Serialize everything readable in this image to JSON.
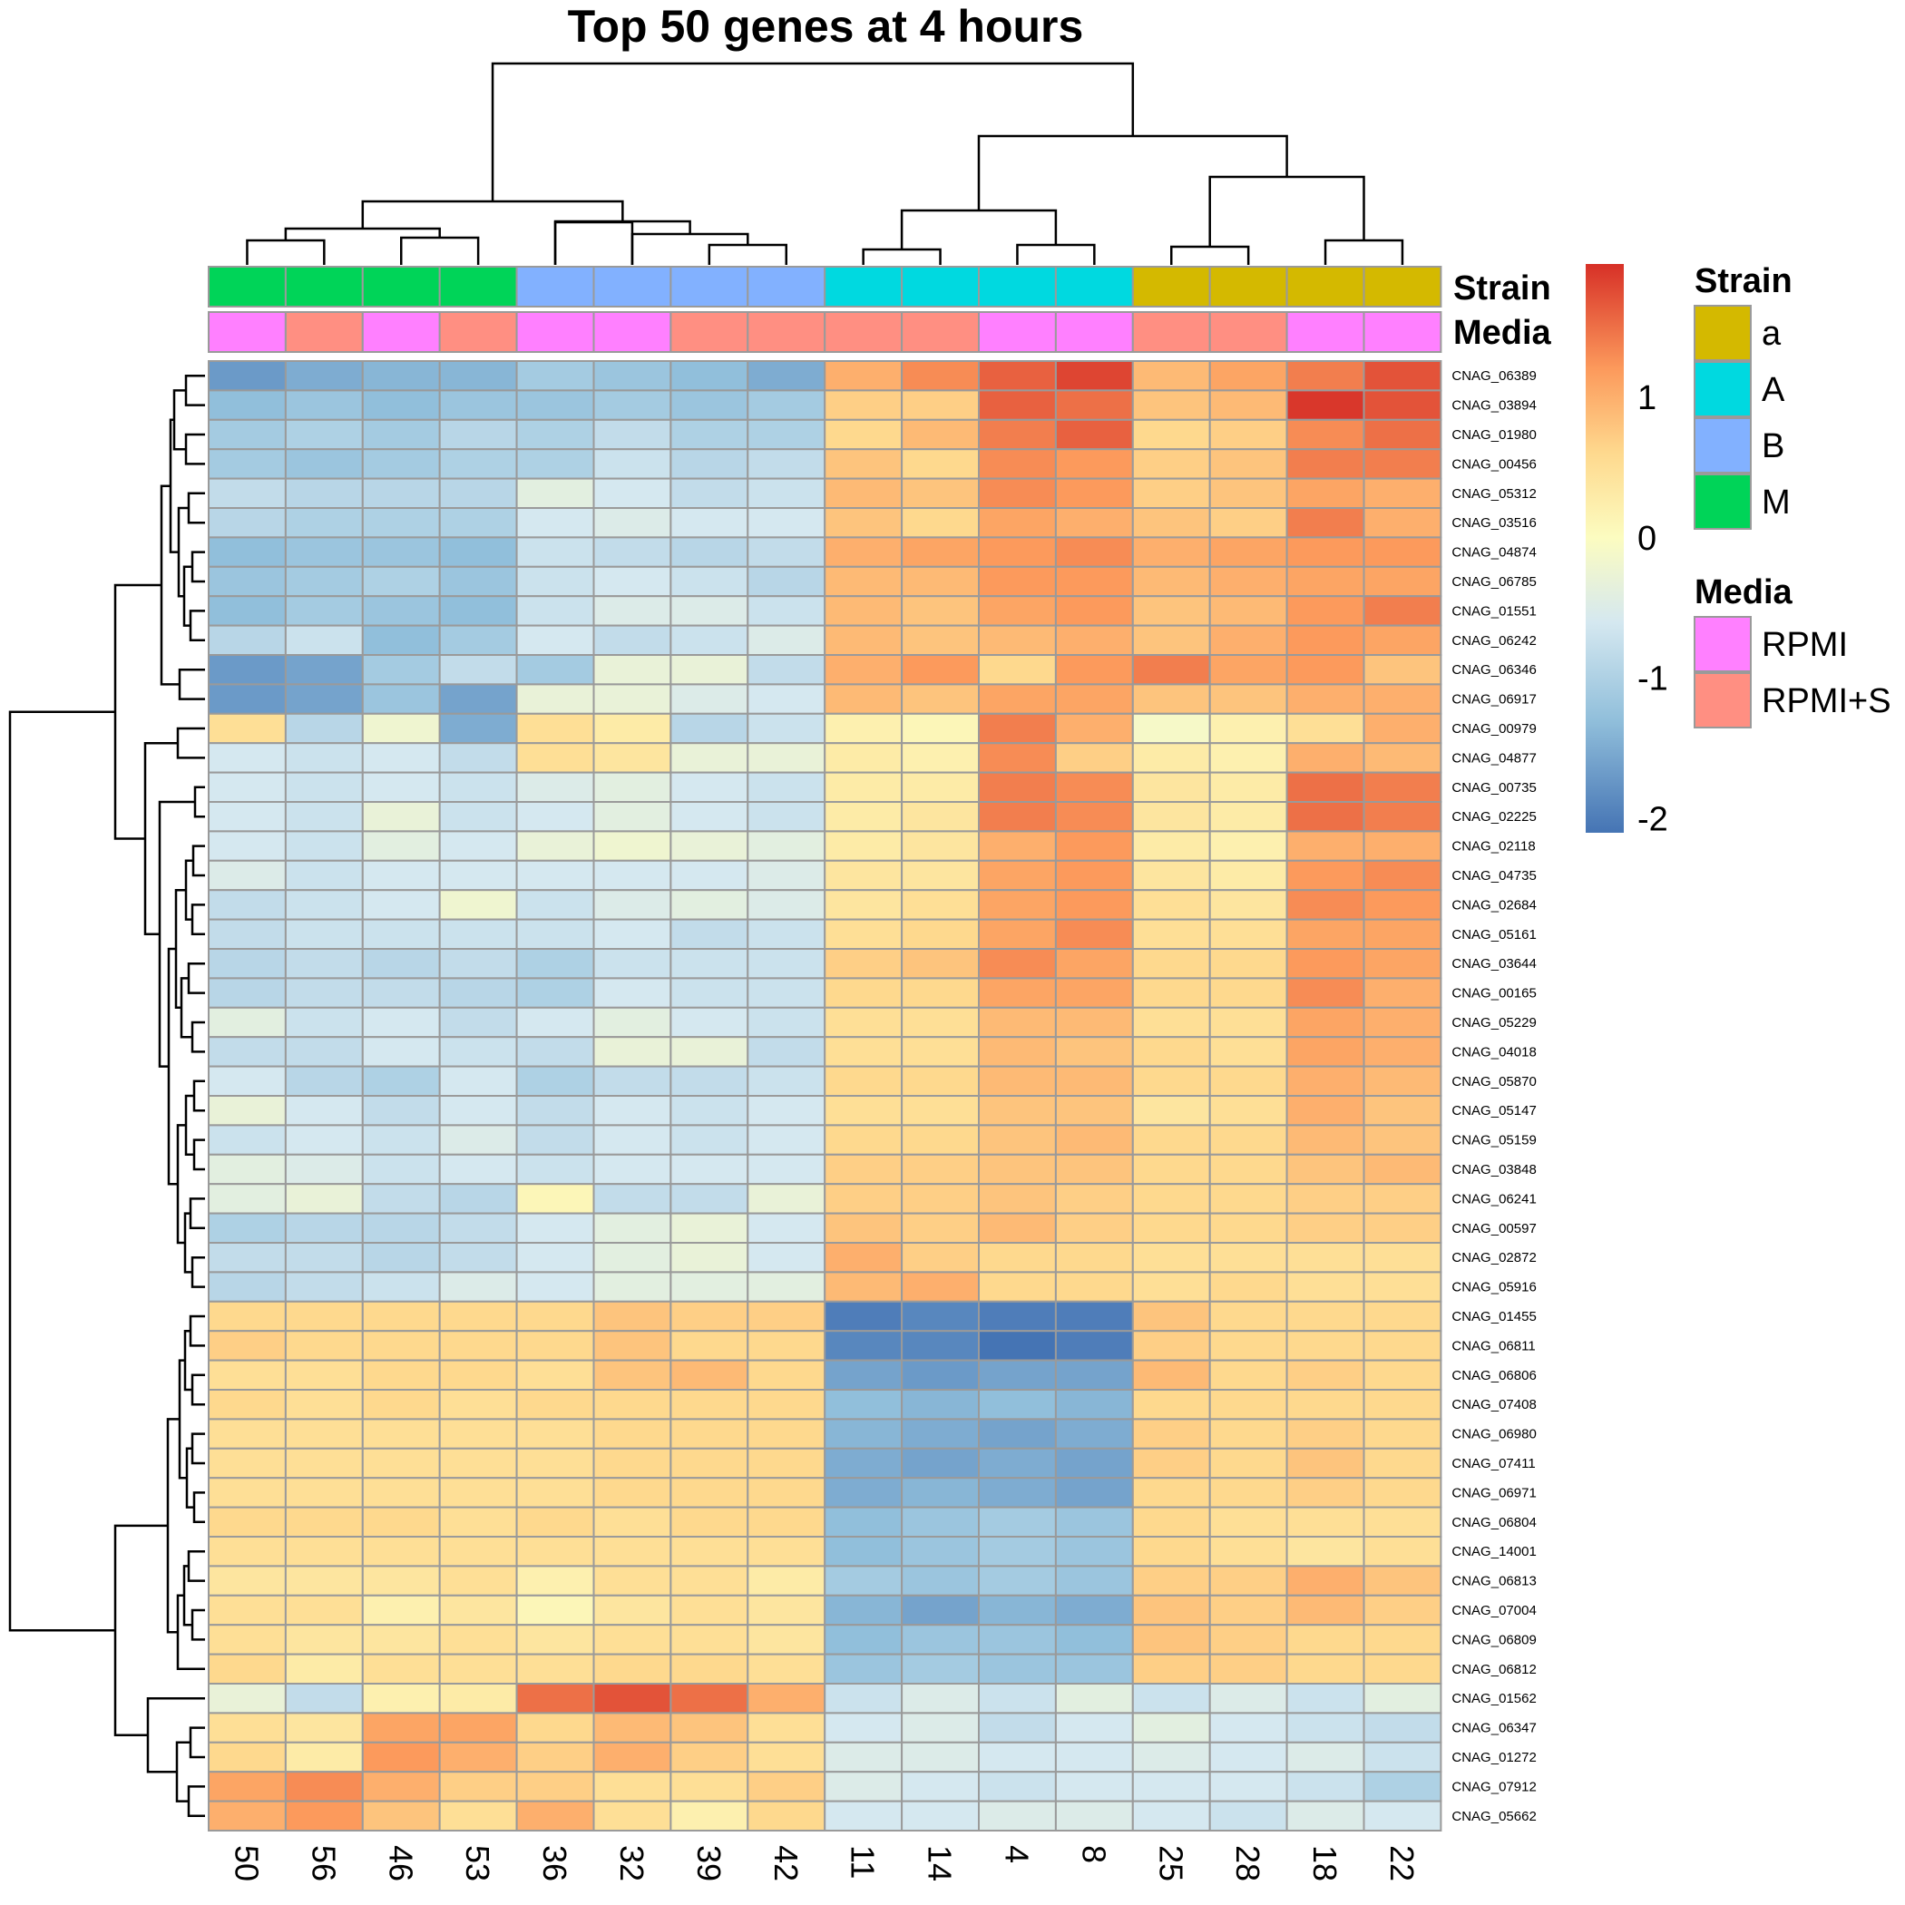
{
  "chart_data": {
    "type": "heatmap",
    "title": "Top 50 genes at 4 hours",
    "columns": [
      "50",
      "56",
      "46",
      "53",
      "36",
      "32",
      "39",
      "42",
      "11",
      "14",
      "4",
      "8",
      "25",
      "28",
      "18",
      "22"
    ],
    "rows": [
      "CNAG_06389",
      "CNAG_03894",
      "CNAG_01980",
      "CNAG_00456",
      "CNAG_05312",
      "CNAG_03516",
      "CNAG_04874",
      "CNAG_06785",
      "CNAG_01551",
      "CNAG_06242",
      "CNAG_06346",
      "CNAG_06917",
      "CNAG_00979",
      "CNAG_04877",
      "CNAG_00735",
      "CNAG_02225",
      "CNAG_02118",
      "CNAG_04735",
      "CNAG_02684",
      "CNAG_05161",
      "CNAG_03644",
      "CNAG_00165",
      "CNAG_05229",
      "CNAG_04018",
      "CNAG_05870",
      "CNAG_05147",
      "CNAG_05159",
      "CNAG_03848",
      "CNAG_06241",
      "CNAG_00597",
      "CNAG_02872",
      "CNAG_05916",
      "CNAG_01455",
      "CNAG_06811",
      "CNAG_06806",
      "CNAG_07408",
      "CNAG_06980",
      "CNAG_07411",
      "CNAG_06971",
      "CNAG_06804",
      "CNAG_14001",
      "CNAG_06813",
      "CNAG_07004",
      "CNAG_06809",
      "CNAG_06812",
      "CNAG_01562",
      "CNAG_06347",
      "CNAG_01272",
      "CNAG_07912",
      "CNAG_05662"
    ],
    "values": [
      [
        -1.7,
        -1.5,
        -1.4,
        -1.4,
        -1.1,
        -1.2,
        -1.3,
        -1.5,
        1.0,
        1.3,
        1.6,
        1.8,
        0.9,
        1.1,
        1.4,
        1.7
      ],
      [
        -1.3,
        -1.2,
        -1.3,
        -1.2,
        -1.2,
        -1.1,
        -1.2,
        -1.1,
        0.7,
        0.7,
        1.6,
        1.5,
        0.8,
        0.9,
        1.9,
        1.7
      ],
      [
        -1.1,
        -1.0,
        -1.1,
        -0.9,
        -1.0,
        -0.8,
        -1.0,
        -1.0,
        0.6,
        0.9,
        1.4,
        1.6,
        0.6,
        0.7,
        1.3,
        1.5
      ],
      [
        -1.1,
        -1.2,
        -1.1,
        -1.0,
        -1.0,
        -0.7,
        -0.9,
        -0.8,
        0.8,
        0.6,
        1.3,
        1.2,
        0.7,
        0.8,
        1.4,
        1.4
      ],
      [
        -0.8,
        -0.9,
        -0.9,
        -0.9,
        -0.4,
        -0.6,
        -0.8,
        -0.7,
        0.9,
        0.8,
        1.3,
        1.2,
        0.7,
        0.8,
        1.1,
        1.0
      ],
      [
        -0.9,
        -1.0,
        -1.0,
        -1.0,
        -0.6,
        -0.5,
        -0.6,
        -0.6,
        0.8,
        0.6,
        1.1,
        1.0,
        0.8,
        0.7,
        1.4,
        1.0
      ],
      [
        -1.3,
        -1.2,
        -1.2,
        -1.3,
        -0.7,
        -0.8,
        -0.9,
        -0.8,
        1.0,
        1.1,
        1.2,
        1.3,
        1.0,
        1.1,
        1.2,
        1.2
      ],
      [
        -1.2,
        -1.1,
        -1.0,
        -1.2,
        -0.7,
        -0.6,
        -0.7,
        -0.9,
        0.9,
        0.9,
        1.2,
        1.2,
        0.9,
        1.0,
        1.1,
        1.1
      ],
      [
        -1.3,
        -1.1,
        -1.2,
        -1.3,
        -0.7,
        -0.5,
        -0.5,
        -0.7,
        0.9,
        0.8,
        1.1,
        1.2,
        0.8,
        0.9,
        1.2,
        1.4
      ],
      [
        -0.9,
        -0.7,
        -1.3,
        -1.1,
        -0.6,
        -0.8,
        -0.7,
        -0.5,
        0.9,
        0.8,
        0.9,
        1.0,
        0.8,
        1.0,
        1.2,
        1.1
      ],
      [
        -1.7,
        -1.6,
        -1.1,
        -0.8,
        -1.1,
        -0.3,
        -0.3,
        -0.8,
        1.0,
        1.2,
        0.6,
        1.2,
        1.4,
        1.1,
        1.2,
        0.8
      ],
      [
        -1.7,
        -1.6,
        -1.2,
        -1.6,
        -0.3,
        -0.3,
        -0.5,
        -0.6,
        0.9,
        0.8,
        1.1,
        1.1,
        0.8,
        0.8,
        1.0,
        1.0
      ],
      [
        0.5,
        -0.9,
        -0.2,
        -1.5,
        0.5,
        0.3,
        -0.9,
        -0.7,
        0.2,
        0.1,
        1.4,
        1.0,
        -0.1,
        0.2,
        0.5,
        1.0
      ],
      [
        -0.6,
        -0.7,
        -0.6,
        -0.8,
        0.5,
        0.4,
        -0.3,
        -0.3,
        0.3,
        0.2,
        1.3,
        0.7,
        0.3,
        0.2,
        1.0,
        0.9
      ],
      [
        -0.6,
        -0.7,
        -0.6,
        -0.7,
        -0.5,
        -0.4,
        -0.6,
        -0.7,
        0.3,
        0.3,
        1.4,
        1.3,
        0.4,
        0.3,
        1.5,
        1.4
      ],
      [
        -0.6,
        -0.7,
        -0.3,
        -0.7,
        -0.6,
        -0.4,
        -0.6,
        -0.7,
        0.3,
        0.4,
        1.4,
        1.3,
        0.4,
        0.3,
        1.5,
        1.4
      ],
      [
        -0.6,
        -0.7,
        -0.4,
        -0.6,
        -0.3,
        -0.2,
        -0.3,
        -0.4,
        0.3,
        0.4,
        1.0,
        1.2,
        0.3,
        0.2,
        1.0,
        1.0
      ],
      [
        -0.5,
        -0.7,
        -0.6,
        -0.6,
        -0.6,
        -0.6,
        -0.6,
        -0.5,
        0.4,
        0.4,
        1.1,
        1.2,
        0.4,
        0.3,
        1.2,
        1.3
      ],
      [
        -0.8,
        -0.7,
        -0.6,
        -0.2,
        -0.7,
        -0.5,
        -0.4,
        -0.5,
        0.4,
        0.5,
        1.1,
        1.2,
        0.5,
        0.4,
        1.3,
        1.2
      ],
      [
        -0.8,
        -0.7,
        -0.7,
        -0.7,
        -0.7,
        -0.6,
        -0.8,
        -0.7,
        0.5,
        0.6,
        1.1,
        1.3,
        0.5,
        0.5,
        1.1,
        1.1
      ],
      [
        -0.9,
        -0.8,
        -0.9,
        -0.8,
        -1.0,
        -0.7,
        -0.7,
        -0.7,
        0.7,
        0.8,
        1.3,
        1.1,
        0.6,
        0.6,
        1.2,
        1.1
      ],
      [
        -0.9,
        -0.8,
        -0.8,
        -0.9,
        -1.0,
        -0.6,
        -0.7,
        -0.7,
        0.6,
        0.6,
        1.1,
        1.1,
        0.6,
        0.6,
        1.3,
        1.0
      ],
      [
        -0.4,
        -0.7,
        -0.6,
        -0.8,
        -0.6,
        -0.4,
        -0.6,
        -0.7,
        0.5,
        0.5,
        0.9,
        0.9,
        0.5,
        0.5,
        1.1,
        1.0
      ],
      [
        -0.8,
        -0.8,
        -0.6,
        -0.7,
        -0.8,
        -0.3,
        -0.3,
        -0.8,
        0.5,
        0.5,
        0.9,
        0.8,
        0.6,
        0.5,
        1.1,
        1.0
      ],
      [
        -0.6,
        -0.9,
        -1.0,
        -0.6,
        -1.0,
        -0.8,
        -0.8,
        -0.7,
        0.6,
        0.6,
        0.9,
        0.9,
        0.6,
        0.6,
        1.0,
        0.9
      ],
      [
        -0.3,
        -0.6,
        -0.8,
        -0.6,
        -0.8,
        -0.6,
        -0.7,
        -0.6,
        0.5,
        0.5,
        0.8,
        0.8,
        0.4,
        0.5,
        1.0,
        0.8
      ],
      [
        -0.7,
        -0.6,
        -0.7,
        -0.5,
        -0.8,
        -0.6,
        -0.7,
        -0.6,
        0.6,
        0.6,
        0.8,
        0.9,
        0.6,
        0.6,
        0.9,
        0.8
      ],
      [
        -0.4,
        -0.5,
        -0.7,
        -0.6,
        -0.7,
        -0.6,
        -0.6,
        -0.6,
        0.7,
        0.7,
        0.8,
        0.8,
        0.6,
        0.6,
        0.8,
        0.9
      ],
      [
        -0.4,
        -0.3,
        -0.8,
        -0.9,
        0.1,
        -0.8,
        -0.8,
        -0.3,
        0.7,
        0.7,
        0.8,
        0.7,
        0.6,
        0.6,
        0.7,
        0.7
      ],
      [
        -1.0,
        -0.9,
        -0.9,
        -0.8,
        -0.6,
        -0.4,
        -0.3,
        -0.6,
        0.8,
        0.7,
        0.9,
        0.7,
        0.6,
        0.6,
        0.7,
        0.7
      ],
      [
        -0.8,
        -0.8,
        -0.9,
        -0.8,
        -0.6,
        -0.4,
        -0.3,
        -0.6,
        1.0,
        0.7,
        0.6,
        0.6,
        0.5,
        0.5,
        0.5,
        0.5
      ],
      [
        -0.9,
        -0.8,
        -0.7,
        -0.5,
        -0.6,
        -0.4,
        -0.4,
        -0.4,
        0.9,
        1.0,
        0.6,
        0.6,
        0.5,
        0.6,
        0.5,
        0.5
      ],
      [
        0.6,
        0.6,
        0.6,
        0.6,
        0.6,
        0.8,
        0.7,
        0.7,
        -2.0,
        -1.9,
        -2.0,
        -2.0,
        0.8,
        0.6,
        0.6,
        0.6
      ],
      [
        0.7,
        0.6,
        0.6,
        0.6,
        0.6,
        0.8,
        0.6,
        0.6,
        -1.9,
        -1.9,
        -2.1,
        -2.0,
        0.7,
        0.6,
        0.6,
        0.6
      ],
      [
        0.5,
        0.5,
        0.6,
        0.6,
        0.5,
        0.8,
        0.9,
        0.6,
        -1.6,
        -1.7,
        -1.6,
        -1.6,
        0.9,
        0.6,
        0.7,
        0.6
      ],
      [
        0.6,
        0.5,
        0.6,
        0.5,
        0.6,
        0.6,
        0.6,
        0.6,
        -1.3,
        -1.4,
        -1.3,
        -1.4,
        0.6,
        0.6,
        0.6,
        0.6
      ],
      [
        0.5,
        0.5,
        0.5,
        0.5,
        0.5,
        0.6,
        0.6,
        0.6,
        -1.4,
        -1.5,
        -1.6,
        -1.5,
        0.7,
        0.6,
        0.7,
        0.6
      ],
      [
        0.5,
        0.5,
        0.5,
        0.5,
        0.5,
        0.6,
        0.6,
        0.6,
        -1.5,
        -1.6,
        -1.5,
        -1.6,
        0.7,
        0.6,
        0.8,
        0.6
      ],
      [
        0.5,
        0.5,
        0.5,
        0.5,
        0.5,
        0.6,
        0.6,
        0.6,
        -1.5,
        -1.4,
        -1.5,
        -1.6,
        0.6,
        0.6,
        0.7,
        0.6
      ],
      [
        0.6,
        0.6,
        0.6,
        0.5,
        0.6,
        0.5,
        0.6,
        0.6,
        -1.3,
        -1.2,
        -1.1,
        -1.2,
        0.6,
        0.5,
        0.5,
        0.5
      ],
      [
        0.5,
        0.5,
        0.5,
        0.5,
        0.5,
        0.5,
        0.5,
        0.5,
        -1.3,
        -1.2,
        -1.1,
        -1.2,
        0.6,
        0.5,
        0.4,
        0.5
      ],
      [
        0.4,
        0.4,
        0.4,
        0.5,
        0.2,
        0.5,
        0.5,
        0.3,
        -1.1,
        -1.2,
        -1.1,
        -1.2,
        0.7,
        0.7,
        1.0,
        0.8
      ],
      [
        0.5,
        0.5,
        0.2,
        0.4,
        0.1,
        0.4,
        0.5,
        0.4,
        -1.4,
        -1.6,
        -1.4,
        -1.5,
        0.8,
        0.7,
        0.9,
        0.7
      ],
      [
        0.5,
        0.4,
        0.4,
        0.5,
        0.4,
        0.5,
        0.5,
        0.4,
        -1.3,
        -1.2,
        -1.2,
        -1.3,
        0.8,
        0.7,
        0.6,
        0.6
      ],
      [
        0.6,
        0.3,
        0.5,
        0.5,
        0.5,
        0.6,
        0.6,
        0.5,
        -1.2,
        -1.1,
        -1.2,
        -1.2,
        0.7,
        0.7,
        0.6,
        0.6
      ],
      [
        -0.3,
        -0.8,
        0.2,
        0.3,
        1.5,
        1.7,
        1.5,
        1.0,
        -0.7,
        -0.5,
        -0.7,
        -0.4,
        -0.7,
        -0.5,
        -0.7,
        -0.4
      ],
      [
        0.5,
        0.4,
        1.1,
        1.1,
        0.6,
        0.9,
        0.8,
        0.5,
        -0.6,
        -0.5,
        -0.8,
        -0.6,
        -0.4,
        -0.6,
        -0.7,
        -0.8
      ],
      [
        0.6,
        0.3,
        1.2,
        1.0,
        0.7,
        1.0,
        0.7,
        0.5,
        -0.5,
        -0.5,
        -0.6,
        -0.6,
        -0.5,
        -0.6,
        -0.5,
        -0.7
      ],
      [
        1.1,
        1.3,
        1.0,
        0.7,
        0.7,
        0.5,
        0.5,
        0.7,
        -0.5,
        -0.6,
        -0.7,
        -0.6,
        -0.6,
        -0.6,
        -0.7,
        -1.0
      ],
      [
        1.0,
        1.2,
        0.8,
        0.5,
        1.0,
        0.5,
        0.2,
        0.6,
        -0.6,
        -0.6,
        -0.5,
        -0.5,
        -0.6,
        -0.7,
        -0.5,
        -0.6
      ]
    ],
    "annotations": {
      "Strain": [
        "M",
        "M",
        "M",
        "M",
        "B",
        "B",
        "B",
        "B",
        "A",
        "A",
        "A",
        "A",
        "a",
        "a",
        "a",
        "a"
      ],
      "Media": [
        "RPMI",
        "RPMI+S",
        "RPMI",
        "RPMI+S",
        "RPMI",
        "RPMI",
        "RPMI+S",
        "RPMI+S",
        "RPMI+S",
        "RPMI+S",
        "RPMI",
        "RPMI",
        "RPMI+S",
        "RPMI+S",
        "RPMI",
        "RPMI"
      ]
    },
    "annotation_colors": {
      "Strain": {
        "a": "#d4b900",
        "A": "#00d9e0",
        "B": "#82b1ff",
        "M": "#00d458"
      },
      "Media": {
        "RPMI": "#ff80ff",
        "RPMI+S": "#ff8f82"
      }
    },
    "color_scale": {
      "range": [
        -2.1,
        1.95
      ],
      "stops": [
        {
          "v": -2.1,
          "c": "#4574b4"
        },
        {
          "v": -1.3,
          "c": "#91bfdb"
        },
        {
          "v": -0.6,
          "c": "#d5e8f0"
        },
        {
          "v": 0.0,
          "c": "#fcfcc0"
        },
        {
          "v": 0.6,
          "c": "#fed98e"
        },
        {
          "v": 1.2,
          "c": "#fc9a5c"
        },
        {
          "v": 1.95,
          "c": "#d73027"
        }
      ],
      "ticks": [
        1,
        0,
        -1,
        -2
      ],
      "tick_labels": [
        "1",
        "0",
        "-1",
        "-2"
      ]
    },
    "legend": {
      "Strain": {
        "title": "Strain",
        "items": [
          "a",
          "A",
          "B",
          "M"
        ]
      },
      "Media": {
        "title": "Media",
        "items": [
          "RPMI",
          "RPMI+S"
        ]
      }
    },
    "annotation_labels": [
      "Strain",
      "Media"
    ]
  }
}
